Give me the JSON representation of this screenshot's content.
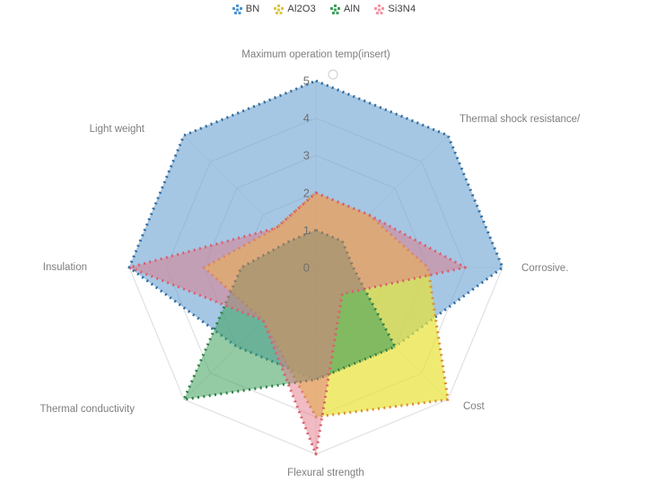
{
  "chart_data": {
    "type": "radar",
    "title": "",
    "axes": [
      "Maximum operation temp(insert)",
      "Thermal shock resistance/",
      "Corrosive.",
      "Cost",
      "Flexural strength",
      "Thermal conductivity",
      "Insulation",
      "Light weight"
    ],
    "scale": {
      "min": 0,
      "max": 5,
      "ticks": [
        "0",
        "1",
        "2",
        "3",
        "4",
        "5"
      ]
    },
    "grid": true,
    "legend_position": "top",
    "series": [
      {
        "name": "BN",
        "values": [
          5,
          5,
          5,
          3,
          3,
          3,
          5,
          5
        ],
        "marker_color": "#4D96D2",
        "fill_color": "rgba(110,165,212,0.62)",
        "border_color": "#2E6DA4"
      },
      {
        "name": "Al2O3",
        "values": [
          2,
          2,
          3,
          5,
          4,
          2,
          3,
          1.5
        ],
        "marker_color": "#D9C93F",
        "fill_color": "rgba(232,226,54,0.70)",
        "border_color": "#D98E32"
      },
      {
        "name": "AlN",
        "values": [
          1,
          1,
          1,
          3,
          3,
          5,
          2,
          1
        ],
        "marker_color": "#3FA05C",
        "fill_color": "rgba(60,160,90,0.55)",
        "border_color": "#2F7D46"
      },
      {
        "name": "Si3N4",
        "values": [
          2,
          2,
          4,
          1,
          5,
          2,
          5,
          1.5
        ],
        "marker_color": "#F097A4",
        "fill_color": "rgba(226,120,135,0.50)",
        "border_color": "#D95F6B"
      }
    ],
    "grid_color": "#dcdcdc",
    "spoke_color": "#ececec"
  }
}
